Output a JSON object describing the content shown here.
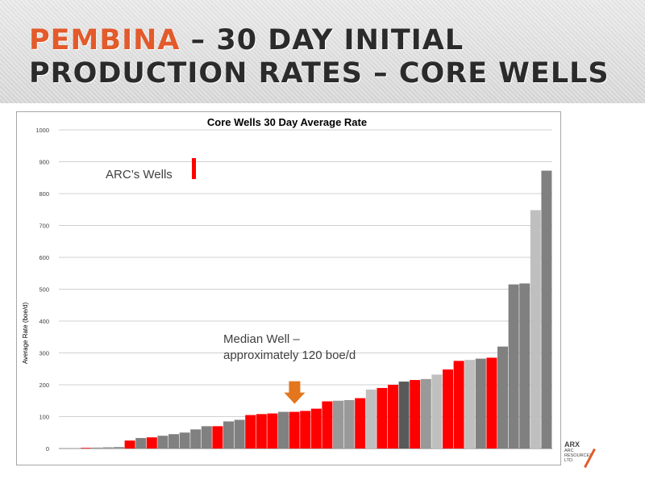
{
  "slide": {
    "title_accent": "PEMBINA",
    "title_rest_line1": " – 30 DAY INITIAL",
    "title_line2": "PRODUCTION RATES – CORE WELLS",
    "logo_brand": "ARX",
    "logo_sub1": "ARC",
    "logo_sub2": "RESOURCES",
    "logo_sub3": "LTD."
  },
  "colors": {
    "accent": "#e35a2b",
    "arc_well": "#ff0000",
    "other_wells": [
      "#808080",
      "#999999",
      "#bfbfbf",
      "#595959"
    ],
    "arrow": "#e4761e"
  },
  "chart_data": {
    "type": "bar",
    "title": "Core Wells 30 Day Average Rate",
    "ylabel": "Average Rate (boe/d)",
    "xlabel": "",
    "ylim": [
      0,
      1000
    ],
    "yticks": [
      0,
      100,
      200,
      300,
      400,
      500,
      600,
      700,
      800,
      900,
      1000
    ],
    "grid": true,
    "legend": {
      "label": "ARC’s Wells",
      "placement": "top-left"
    },
    "annotation": {
      "line1": "Median Well –",
      "line2": "approximately 120 boe/d",
      "arrow_value": 120
    },
    "values": [
      1,
      1,
      2,
      3,
      4,
      5,
      25,
      33,
      35,
      40,
      45,
      50,
      60,
      70,
      70,
      85,
      90,
      105,
      108,
      110,
      115,
      115,
      118,
      125,
      148,
      150,
      152,
      158,
      185,
      190,
      200,
      210,
      215,
      218,
      232,
      248,
      275,
      278,
      282,
      285,
      320,
      515,
      518,
      748,
      872
    ],
    "arc": [
      0,
      0,
      1,
      0,
      0,
      0,
      1,
      0,
      1,
      0,
      0,
      0,
      0,
      0,
      1,
      0,
      0,
      1,
      1,
      1,
      0,
      1,
      1,
      1,
      1,
      0,
      0,
      1,
      0,
      1,
      1,
      0,
      1,
      0,
      0,
      1,
      1,
      0,
      0,
      1,
      0,
      0,
      0,
      0,
      0
    ],
    "shade": [
      1,
      1,
      1,
      1,
      1,
      1,
      0,
      0,
      0,
      0,
      0,
      0,
      0,
      0,
      0,
      0,
      0,
      0,
      0,
      0,
      0,
      0,
      0,
      0,
      0,
      1,
      1,
      0,
      2,
      0,
      0,
      3,
      0,
      1,
      2,
      0,
      0,
      2,
      0,
      0,
      0,
      0,
      0,
      2,
      0
    ]
  }
}
